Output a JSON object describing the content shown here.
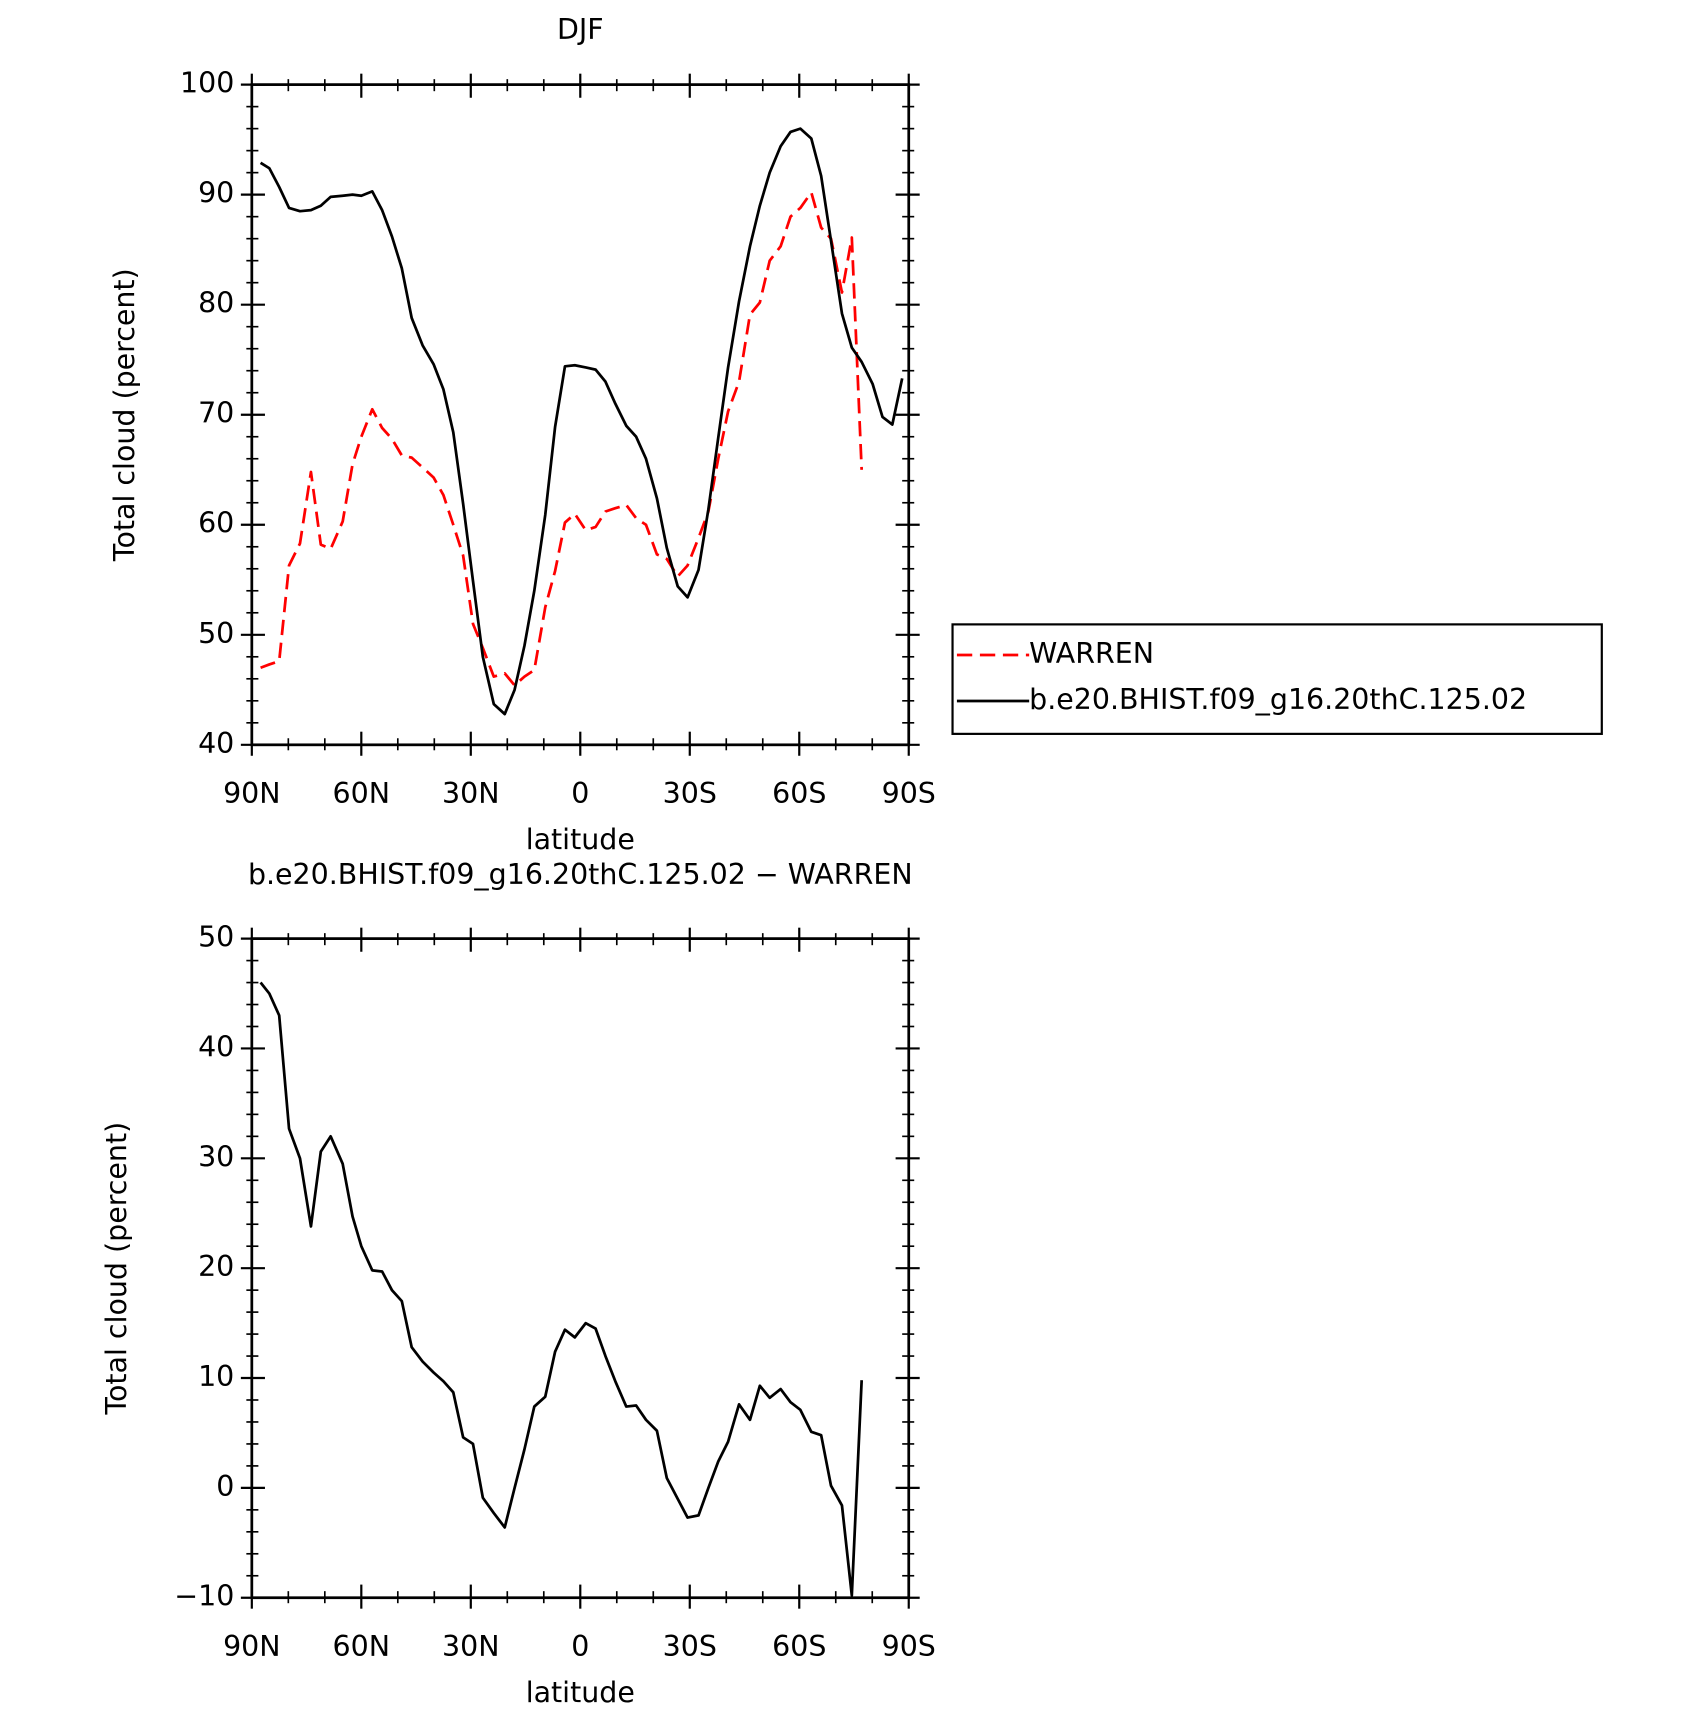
{
  "chart_data": [
    {
      "type": "line",
      "title": "DJF",
      "xlabel": "latitude",
      "ylabel": "Total cloud (percent)",
      "x": [
        87.6,
        85.2,
        82.5,
        79.8,
        76.8,
        73.8,
        71.1,
        68.4,
        65.1,
        62.4,
        60,
        57,
        54.3,
        51.6,
        48.9,
        46.2,
        43.2,
        40.2,
        37.5,
        34.8,
        32.1,
        29.4,
        26.7,
        23.7,
        20.7,
        18,
        15.3,
        12.6,
        9.6,
        6.9,
        4.2,
        1.5,
        -1.5,
        -4.2,
        -6.9,
        -9.6,
        -12.6,
        -15.3,
        -18,
        -21,
        -23.7,
        -26.7,
        -29.4,
        -32.4,
        -35.1,
        -37.8,
        -40.5,
        -43.5,
        -46.5,
        -49.2,
        -51.9,
        -54.9,
        -57.6,
        -60.3,
        -63.3,
        -66,
        -68.7,
        -71.7,
        -74.4,
        -77.1,
        -80.1,
        -82.8,
        -85.5,
        -88.2
      ],
      "series": [
        {
          "name": "WARREN",
          "color": "#ff0000",
          "line_style": "dashed",
          "values": [
            47,
            47.3,
            47.6,
            56.3,
            58.3,
            64.8,
            58.2,
            57.8,
            60.3,
            65.5,
            68,
            70.5,
            68.8,
            67.8,
            66.3,
            66.1,
            65.2,
            64.3,
            62.7,
            60,
            57.2,
            51,
            48.8,
            46.2,
            46.5,
            45.4,
            46.2,
            46.8,
            52.5,
            55.8,
            60.2,
            61,
            59.5,
            59.8,
            61.2,
            61.5,
            61.8,
            60.6,
            60,
            57.3,
            56.9,
            55.3,
            56.3,
            58.8,
            61.2,
            66,
            70.3,
            73,
            79.1,
            80.2,
            84,
            85.3,
            88,
            88.8,
            90.2,
            87,
            86,
            81.1,
            86.1,
            65,
            null,
            null,
            null,
            null
          ]
        },
        {
          "name": "b.e20.BHIST.f09_g16.20thC.125.02",
          "color": "#000000",
          "line_style": "solid",
          "values": [
            92.9,
            92.4,
            90.7,
            88.8,
            88.5,
            88.6,
            89.0,
            89.8,
            89.9,
            90.0,
            89.9,
            90.3,
            88.6,
            86.2,
            83.3,
            78.8,
            76.3,
            74.6,
            72.3,
            68.4,
            61.9,
            54.9,
            48.0,
            43.7,
            42.8,
            45,
            49,
            54,
            60.9,
            68.9,
            74.4,
            74.5,
            74.3,
            74.1,
            73,
            71,
            69,
            68,
            66,
            62.4,
            57.9,
            54.4,
            53.4,
            55.9,
            61.4,
            67.9,
            74.3,
            80.3,
            85.3,
            89,
            92,
            94.4,
            95.7,
            96,
            95.1,
            91.7,
            85.8,
            79.2,
            76.1,
            74.8,
            72.8,
            69.8,
            69.1,
            73.3
          ]
        }
      ],
      "xlim": [
        90,
        -90
      ],
      "xticks": [
        {
          "value": 90,
          "label": "90N"
        },
        {
          "value": 60,
          "label": "60N"
        },
        {
          "value": 30,
          "label": "30N"
        },
        0,
        {
          "value": -30,
          "label": "30S"
        },
        {
          "value": -60,
          "label": "60S"
        },
        {
          "value": -90,
          "label": "90S"
        }
      ],
      "ylim": [
        40,
        100
      ],
      "yticks": [
        40,
        50,
        60,
        70,
        80,
        90,
        100
      ],
      "legend": "outside-right"
    },
    {
      "type": "line",
      "title": "b.e20.BHIST.f09_g16.20thC.125.02 − WARREN",
      "xlabel": "latitude",
      "ylabel": "Total cloud (percent)",
      "x": [
        87.6,
        85.2,
        82.5,
        79.8,
        76.8,
        73.8,
        71.1,
        68.4,
        65.1,
        62.4,
        60,
        57,
        54.3,
        51.6,
        48.9,
        46.2,
        43.2,
        40.2,
        37.5,
        34.8,
        32.1,
        29.4,
        26.7,
        23.7,
        20.7,
        18,
        15.3,
        12.6,
        9.6,
        6.9,
        4.2,
        1.5,
        -1.5,
        -4.2,
        -6.9,
        -9.6,
        -12.6,
        -15.3,
        -18,
        -21,
        -23.7,
        -26.7,
        -29.4,
        -32.4,
        -35.1,
        -37.8,
        -40.5,
        -43.5,
        -46.5,
        -49.2,
        -51.9,
        -54.9,
        -57.6,
        -60.3,
        -63.3,
        -66,
        -68.7,
        -71.7,
        -74.4,
        -77.1,
        -80.1,
        -82.8,
        -85.5,
        -88.2
      ],
      "series": [
        {
          "color": "#000000",
          "line_style": "solid",
          "values": [
            46,
            45,
            43,
            32.7,
            30,
            23.8,
            30.6,
            32,
            29.5,
            24.7,
            22,
            19.8,
            19.7,
            18,
            17,
            12.8,
            11.5,
            10.5,
            9.7,
            8.7,
            4.6,
            4,
            -0.9,
            -2.3,
            -3.6,
            0,
            3.5,
            7.4,
            8.3,
            12.4,
            14.4,
            13.7,
            15,
            14.5,
            12,
            9.7,
            7.4,
            7.5,
            6.2,
            5.2,
            0.9,
            -1,
            -2.7,
            -2.5,
            0,
            2.4,
            4.2,
            7.6,
            6.2,
            9.3,
            8.2,
            9,
            7.8,
            7.1,
            5.1,
            4.8,
            0.2,
            -1.6,
            -9.8,
            9.8,
            null,
            null,
            null,
            null
          ]
        }
      ],
      "xlim": [
        90,
        -90
      ],
      "xticks": [
        {
          "value": 90,
          "label": "90N"
        },
        {
          "value": 60,
          "label": "60N"
        },
        {
          "value": 30,
          "label": "30N"
        },
        0,
        {
          "value": -30,
          "label": "30S"
        },
        {
          "value": -60,
          "label": "60S"
        },
        {
          "value": -90,
          "label": "90S"
        }
      ],
      "ylim": [
        -10,
        50
      ],
      "yticks": [
        {
          "value": -10,
          "label": "−10"
        },
        0,
        10,
        20,
        30,
        40,
        50
      ]
    }
  ]
}
